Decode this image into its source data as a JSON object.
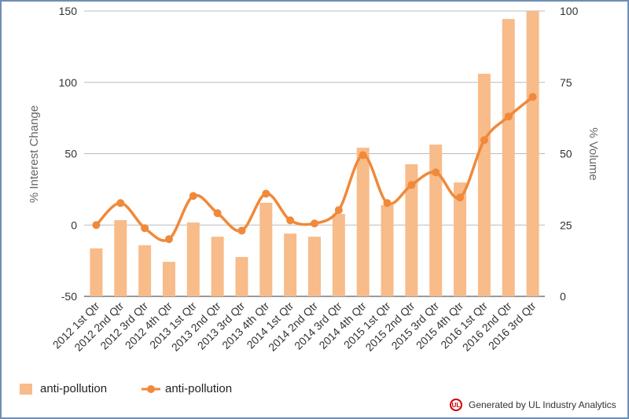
{
  "chart_data": {
    "type": "bar+line",
    "categories": [
      "2012 1st Qtr",
      "2012 2nd Qtr",
      "2012 3rd Qtr",
      "2012 4th Qtr",
      "2013 1st Qtr",
      "2013 2nd Qtr",
      "2013 3rd Qtr",
      "2013 4th Qtr",
      "2014 1st Qtr",
      "2014 2nd Qtr",
      "2014 3rd Qtr",
      "2014 4th Qtr",
      "2015 1st Qtr",
      "2015 2nd Qtr",
      "2015 3rd Qtr",
      "2015 4th Qtr",
      "2016 1st Qtr",
      "2016 2nd Qtr",
      "2016 3rd Qtr"
    ],
    "series": [
      {
        "name": "anti-pollution",
        "type": "bar",
        "axis": "right",
        "color": "#f8bb8a",
        "values": [
          16.8,
          26.7,
          17.9,
          12.1,
          25.9,
          20.9,
          13.8,
          32.8,
          22.0,
          20.9,
          28.9,
          52.1,
          32.0,
          46.3,
          53.2,
          39.9,
          78.0,
          97.2,
          100
        ]
      },
      {
        "name": "anti-pollution",
        "type": "line",
        "axis": "left",
        "color": "#f0893a",
        "values": [
          0,
          15.4,
          -2.2,
          -9.9,
          20.4,
          8.3,
          -3.9,
          22.0,
          3.3,
          1.1,
          10.5,
          49.0,
          15.4,
          28.1,
          36.9,
          19.3,
          59.5,
          76.0,
          89.8
        ]
      }
    ],
    "ylabel_left": "% Interest Change",
    "ylabel_right": "% Volume",
    "ylim_left": [
      -50,
      150
    ],
    "ylim_right": [
      0,
      100
    ],
    "yticks_left": [
      "150",
      "100",
      "50",
      "0",
      "-50"
    ],
    "yticks_right": [
      "100",
      "75",
      "50",
      "25",
      "0"
    ],
    "grid": true,
    "legend": "bottom-left"
  },
  "footer": {
    "credit": "Generated by UL Industry Analytics",
    "logo_text": "UL"
  }
}
